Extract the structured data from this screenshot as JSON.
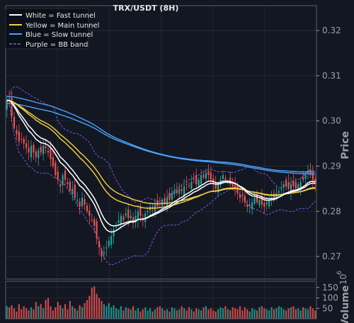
{
  "chart_data": {
    "type": "candlestick",
    "title": "TRX/USDT (8H)",
    "ylabel": "Price",
    "volume_label": "Volume",
    "volume_exponent_base": "10",
    "volume_exponent_power": "6",
    "ylim": [
      0.265,
      0.3255
    ],
    "volume_ylim": [
      0,
      180
    ],
    "yticks": [
      "0.27",
      "0.28",
      "0.29",
      "0.30",
      "0.31",
      "0.32"
    ],
    "volume_ticks": [
      "50",
      "100",
      "150"
    ],
    "grid": true,
    "legend_position": "top-left",
    "legend": [
      {
        "label": "White = Fast tunnel",
        "color": "#ffffff",
        "style": "solid"
      },
      {
        "label": "Yellow = Main tunnel",
        "color": "#f5d142",
        "style": "solid"
      },
      {
        "label": "Blue = Slow tunnel",
        "color": "#4aa3ff",
        "style": "solid"
      },
      {
        "label": "Purple = BB band",
        "color": "#8a5cf5",
        "style": "dashed"
      }
    ],
    "colors": {
      "up": "#26a69a",
      "down": "#ef5350",
      "background": "#131722",
      "grid": "#2a2e39"
    },
    "close": [
      0.3045,
      0.305,
      0.301,
      0.2985,
      0.297,
      0.2955,
      0.296,
      0.295,
      0.294,
      0.293,
      0.2945,
      0.293,
      0.292,
      0.2935,
      0.293,
      0.2945,
      0.294,
      0.293,
      0.2915,
      0.29,
      0.288,
      0.287,
      0.2855,
      0.288,
      0.287,
      0.286,
      0.2845,
      0.285,
      0.283,
      0.2825,
      0.281,
      0.283,
      0.2815,
      0.28,
      0.279,
      0.278,
      0.2768,
      0.274,
      0.272,
      0.27,
      0.271,
      0.272,
      0.2735,
      0.2745,
      0.276,
      0.277,
      0.278,
      0.279,
      0.278,
      0.2795,
      0.2785,
      0.279,
      0.2775,
      0.279,
      0.28,
      0.279,
      0.278,
      0.2795,
      0.28,
      0.281,
      0.2805,
      0.2815,
      0.281,
      0.282,
      0.2825,
      0.2818,
      0.283,
      0.2825,
      0.284,
      0.2845,
      0.284,
      0.285,
      0.2845,
      0.2855,
      0.286,
      0.2855,
      0.2865,
      0.287,
      0.286,
      0.287,
      0.288,
      0.2875,
      0.2885,
      0.288,
      0.287,
      0.286,
      0.285,
      0.286,
      0.287,
      0.288,
      0.287,
      0.2865,
      0.286,
      0.2855,
      0.285,
      0.284,
      0.283,
      0.2835,
      0.282,
      0.281,
      0.2815,
      0.282,
      0.283,
      0.282,
      0.2825,
      0.2815,
      0.281,
      0.282,
      0.2825,
      0.283,
      0.283,
      0.284,
      0.2845,
      0.285,
      0.286,
      0.2855,
      0.285,
      0.286,
      0.2855,
      0.285,
      0.286,
      0.2865,
      0.287,
      0.288,
      0.289,
      0.288,
      0.287,
      0.286
    ],
    "volume": [
      60,
      55,
      65,
      50,
      35,
      70,
      45,
      60,
      50,
      40,
      55,
      45,
      80,
      60,
      70,
      50,
      90,
      100,
      60,
      40,
      55,
      80,
      65,
      50,
      70,
      45,
      85,
      60,
      50,
      40,
      65,
      55,
      75,
      90,
      110,
      150,
      155,
      120,
      100,
      85,
      70,
      60,
      75,
      55,
      65,
      50,
      45,
      60,
      40,
      55,
      50,
      45,
      60,
      40,
      50,
      35,
      45,
      55,
      40,
      50,
      35,
      45,
      55,
      60,
      50,
      40,
      45,
      35,
      55,
      50,
      40,
      45,
      60,
      50,
      40,
      55,
      45,
      35,
      50,
      45,
      40,
      55,
      60,
      45,
      50,
      40,
      35,
      45,
      55,
      50,
      60,
      45,
      40,
      55,
      50,
      45,
      60,
      40,
      55,
      45,
      35,
      50,
      45,
      40,
      55,
      60,
      50,
      45,
      40,
      55,
      45,
      50,
      60,
      55,
      45,
      40,
      50,
      55,
      60,
      45,
      50,
      40,
      55,
      50,
      45,
      60,
      50,
      40
    ]
  }
}
